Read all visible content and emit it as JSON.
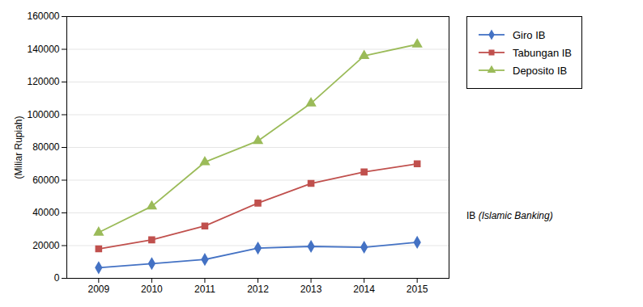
{
  "chart_data": {
    "type": "line",
    "x": [
      2009,
      2010,
      2011,
      2012,
      2013,
      2014,
      2015
    ],
    "xlim": [
      2008.4,
      2015.6
    ],
    "xticks": [
      2009,
      2010,
      2011,
      2012,
      2013,
      2014,
      2015
    ],
    "ylabel": "(Miliar Rupiah)",
    "ylim": [
      0,
      160000
    ],
    "yticks": [
      0,
      20000,
      40000,
      60000,
      80000,
      100000,
      120000,
      140000,
      160000
    ],
    "grid": true,
    "legend": "right",
    "series": [
      {
        "name": "Giro IB",
        "color": "#4472C4",
        "marker": "diamond",
        "values": [
          6500,
          9000,
          11500,
          18500,
          19500,
          19000,
          22000
        ]
      },
      {
        "name": "Tabungan IB",
        "color": "#C0504D",
        "marker": "square",
        "values": [
          18000,
          23500,
          32000,
          46000,
          58000,
          65000,
          70000
        ]
      },
      {
        "name": "Deposito IB",
        "color": "#9BBB59",
        "marker": "triangle",
        "values": [
          28000,
          44000,
          71000,
          84000,
          107000,
          136000,
          143000
        ]
      }
    ],
    "annotations": [
      "IB ",
      "(Islamic Banking)"
    ]
  }
}
